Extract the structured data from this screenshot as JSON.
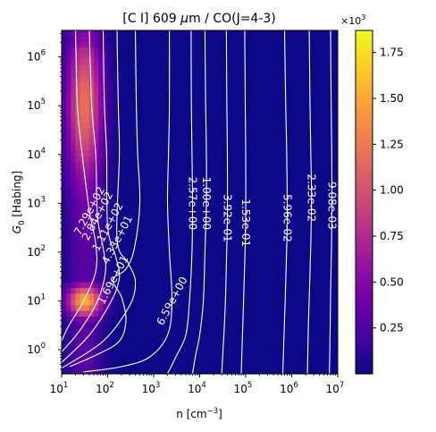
{
  "chart_data": {
    "type": "heatmap",
    "title": "[C I] 609 μm / CO(J=4-3)",
    "title_parts": {
      "pre": "[C I] 609 ",
      "mu": "μ",
      "post": "m / CO(J=4-3)"
    },
    "xlabel": {
      "base": "n [cm",
      "sup": "−3",
      "close": "]"
    },
    "ylabel": {
      "base": "G",
      "sub": "0",
      "rest": " [Habing]"
    },
    "x_scale": "log",
    "y_scale": "log",
    "xlim": [
      10,
      10000000
    ],
    "ylim": [
      0.32,
      3500000
    ],
    "x_ticks": [
      {
        "value": 10,
        "base": "10",
        "exp": "1"
      },
      {
        "value": 100,
        "base": "10",
        "exp": "2"
      },
      {
        "value": 1000,
        "base": "10",
        "exp": "3"
      },
      {
        "value": 10000,
        "base": "10",
        "exp": "4"
      },
      {
        "value": 100000,
        "base": "10",
        "exp": "5"
      },
      {
        "value": 1000000,
        "base": "10",
        "exp": "6"
      },
      {
        "value": 10000000,
        "base": "10",
        "exp": "7"
      }
    ],
    "y_ticks": [
      {
        "value": 1,
        "base": "10",
        "exp": "0"
      },
      {
        "value": 10,
        "base": "10",
        "exp": "1"
      },
      {
        "value": 100,
        "base": "10",
        "exp": "2"
      },
      {
        "value": 1000,
        "base": "10",
        "exp": "3"
      },
      {
        "value": 10000,
        "base": "10",
        "exp": "4"
      },
      {
        "value": 100000,
        "base": "10",
        "exp": "5"
      },
      {
        "value": 1000000,
        "base": "10",
        "exp": "6"
      }
    ],
    "colormap": "plasma",
    "colorbar": {
      "range": [
        0.0,
        1.87
      ],
      "ticks": [
        "0.25",
        "0.50",
        "0.75",
        "1.00",
        "1.25",
        "1.50",
        "1.75"
      ],
      "tick_values": [
        0.25,
        0.5,
        0.75,
        1.0,
        1.25,
        1.5,
        1.75
      ],
      "multiplier": {
        "base": "×10",
        "exp": "3"
      }
    },
    "contour_color": "#ffffff",
    "contours": [
      {
        "label": "7.29e+02",
        "label_at": [
          40,
          700
        ]
      },
      {
        "label": "2.84e+02",
        "label_at": [
          60,
          550
        ]
      },
      {
        "label": "1.11e+02",
        "label_at": [
          100,
          330
        ]
      },
      {
        "label": "4.33e+01",
        "label_at": [
          160,
          180
        ]
      },
      {
        "label": "1.69e+01",
        "label_at": [
          130,
          27
        ]
      },
      {
        "label": "6.59e+00",
        "label_at": [
          2500,
          10
        ]
      },
      {
        "label": "2.57e+00",
        "label_at": [
          7000,
          1000
        ]
      },
      {
        "label": "1.00e+00",
        "label_at": [
          14000,
          1000
        ]
      },
      {
        "label": "3.92e-01",
        "label_at": [
          40000,
          500
        ]
      },
      {
        "label": "1.53e-01",
        "label_at": [
          100000,
          400
        ]
      },
      {
        "label": "5.96e-02",
        "label_at": [
          800000,
          500
        ]
      },
      {
        "label": "2.33e-02",
        "label_at": [
          2700000,
          1300
        ]
      },
      {
        "label": "9.08e-03",
        "label_at": [
          7500000,
          900
        ]
      }
    ]
  }
}
